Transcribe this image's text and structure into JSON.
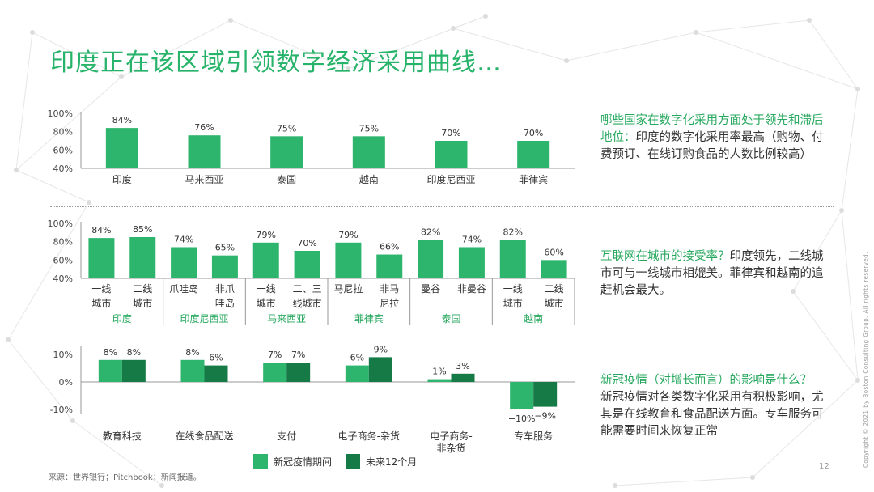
{
  "title": "印度正在该区域引领数字经济采用曲线…",
  "notes": [
    {
      "q": "哪些国家在数字化采用方面处于领先和滞后地位：",
      "text": "印度的数字化采用率最高（购物、付费预订、在线订购食品的人数比例较高）"
    },
    {
      "q": "互联网在城市的接受率？",
      "text": "印度领先，二线城市可与一线城市相媲美。菲律宾和越南的追赶机会最大。"
    },
    {
      "q": "新冠疫情（对增长而言）的影响是什么？",
      "text": "新冠疫情对各类数字化采用有积极影响，尤其是在线教育和食品配送方面。专车服务可能需要时间来恢复正常"
    }
  ],
  "legend": {
    "during": "新冠疫情期间",
    "future": "未来12个月"
  },
  "source": "来源：世界银行；Pitchbook；新闻报道。",
  "page_number": "12",
  "copyright": "Copyright © 2021 by Boston Consulting Group. All rights reserved.",
  "colors": {
    "green": "#2db56d",
    "dark_green": "#157a45",
    "title": "#27b36a",
    "group_label": "#27a85f"
  },
  "chart_data": [
    {
      "type": "bar",
      "categories": [
        "印度",
        "马来西亚",
        "泰国",
        "越南",
        "印度尼西亚",
        "菲律宾"
      ],
      "values": [
        84,
        76,
        75,
        75,
        70,
        70
      ],
      "value_labels": [
        "84%",
        "76%",
        "75%",
        "75%",
        "70%",
        "70%"
      ],
      "yticks": [
        "100%",
        "80%",
        "60%",
        "40%"
      ],
      "ylim": [
        40,
        100
      ]
    },
    {
      "type": "bar",
      "groups": [
        {
          "name": "印度",
          "bars": [
            {
              "label": "一线城市",
              "value": 84,
              "text": "84%"
            },
            {
              "label": "二线城市",
              "value": 85,
              "text": "85%"
            }
          ]
        },
        {
          "name": "印度尼西亚",
          "bars": [
            {
              "label": "爪哇岛",
              "value": 74,
              "text": "74%"
            },
            {
              "label": "非爪哇岛",
              "value": 65,
              "text": "65%"
            }
          ]
        },
        {
          "name": "马来西亚",
          "bars": [
            {
              "label": "一线城市",
              "value": 79,
              "text": "79%"
            },
            {
              "label": "二、三线城市",
              "value": 70,
              "text": "70%"
            }
          ]
        },
        {
          "name": "菲律宾",
          "bars": [
            {
              "label": "马尼拉",
              "value": 79,
              "text": "79%"
            },
            {
              "label": "非马尼拉",
              "value": 66,
              "text": "66%"
            }
          ]
        },
        {
          "name": "泰国",
          "bars": [
            {
              "label": "曼谷",
              "value": 82,
              "text": "82%"
            },
            {
              "label": "非曼谷",
              "value": 74,
              "text": "74%"
            }
          ]
        },
        {
          "name": "越南",
          "bars": [
            {
              "label": "一线城市",
              "value": 82,
              "text": "82%"
            },
            {
              "label": "二线城市",
              "value": 60,
              "text": "60%"
            }
          ]
        }
      ],
      "yticks": [
        "100%",
        "80%",
        "60%",
        "40%"
      ],
      "ylim": [
        40,
        100
      ]
    },
    {
      "type": "bar",
      "categories": [
        "教育科技",
        "在线食品配送",
        "支付",
        "电子商务-杂货",
        "电子商务-非杂货",
        "专车服务"
      ],
      "series": [
        {
          "name": "新冠疫情期间",
          "values": [
            8,
            8,
            7,
            6,
            1,
            -10
          ],
          "labels": [
            "8%",
            "8%",
            "7%",
            "6%",
            "1%",
            "−10%"
          ]
        },
        {
          "name": "未来12个月",
          "values": [
            8,
            6,
            7,
            9,
            3,
            -9
          ],
          "labels": [
            "8%",
            "6%",
            "7%",
            "9%",
            "3%",
            "−9%"
          ]
        }
      ],
      "yticks": [
        "10%",
        "0%",
        "-10%"
      ],
      "ylim": [
        -12,
        12
      ]
    }
  ]
}
